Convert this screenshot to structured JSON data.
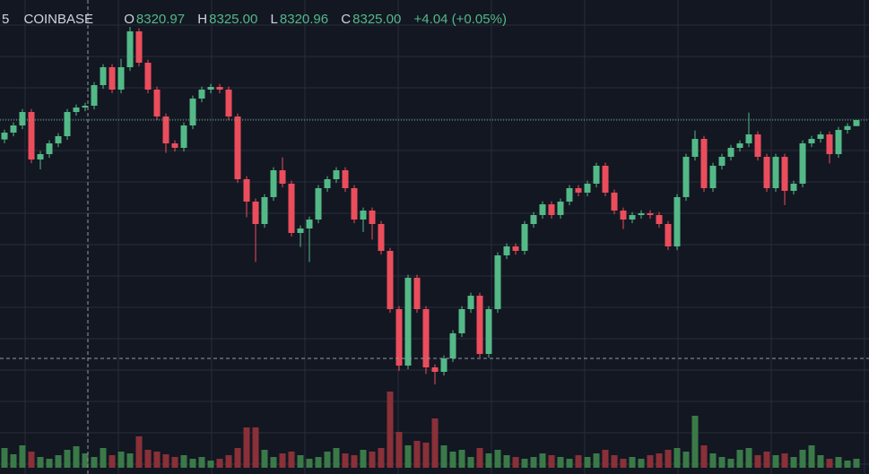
{
  "chart_data": {
    "type": "candlestick",
    "legend": {
      "interval": "5",
      "exchange": "COINBASE",
      "labels": [
        "O",
        "H",
        "L",
        "C"
      ],
      "values": [
        "8320.97",
        "8325.00",
        "8320.96",
        "8325.00"
      ],
      "change": "+4.04 (+0.05%)"
    },
    "up_color": "#53b987",
    "down_color": "#eb4d5c",
    "volume_up_color": "#3a7a48",
    "volume_down_color": "#8a3038",
    "ylim": [
      8147.4,
      8387.4
    ],
    "open": [
      8312.0,
      8316.6,
      8321.4,
      8330.4,
      8298.6,
      8302.2,
      8309.4,
      8314.2,
      8330.4,
      8333.4,
      8334.6,
      8348.4,
      8360.4,
      8345.4,
      8360.4,
      8384.4,
      8363.4,
      8345.4,
      8327.4,
      8309.4,
      8306.4,
      8321.4,
      8339.4,
      8345.4,
      8347.2,
      8345.4,
      8327.4,
      8285.4,
      8270.4,
      8255.4,
      8273.4,
      8291.4,
      8282.4,
      8249.4,
      8252.4,
      8258.4,
      8279.4,
      8285.4,
      8291.4,
      8279.4,
      8258.4,
      8264.4,
      8255.4,
      8237.4,
      8198.4,
      8160.6,
      8219.4,
      8198.4,
      8159.4,
      8156.4,
      8165.4,
      8182.2,
      8198.4,
      8207.4,
      8168.4,
      8198.4,
      8234.4,
      8240.4,
      8237.4,
      8255.4,
      8261.4,
      8268.6,
      8261.4,
      8270.4,
      8279.4,
      8276.4,
      8282.4,
      8294.4,
      8276.4,
      8264.4,
      8258.4,
      8261.4,
      8262.6,
      8261.4,
      8255.4,
      8240.4,
      8273.4,
      8300.4,
      8312.4,
      8279.4,
      8294.4,
      8300.4,
      8306.4,
      8309.4,
      8315.4,
      8300.4,
      8279.4,
      8300.4,
      8277.6,
      8282.4,
      8309.4,
      8312.4,
      8315.4,
      8302.2,
      8318.4,
      8320.97
    ],
    "high": [
      8318.6,
      8323.4,
      8332.4,
      8332.4,
      8304.2,
      8311.4,
      8316.2,
      8332.4,
      8335.4,
      8336.6,
      8350.4,
      8362.4,
      8362.4,
      8366.0,
      8387.4,
      8386.4,
      8365.4,
      8347.4,
      8329.4,
      8311.4,
      8323.4,
      8341.4,
      8347.4,
      8349.2,
      8349.2,
      8347.4,
      8329.4,
      8287.4,
      8272.4,
      8275.4,
      8293.4,
      8300.0,
      8284.4,
      8254.4,
      8260.4,
      8281.4,
      8287.4,
      8293.4,
      8293.4,
      8281.4,
      8266.4,
      8266.4,
      8257.4,
      8239.4,
      8200.4,
      8221.4,
      8221.4,
      8200.4,
      8161.4,
      8167.4,
      8184.2,
      8200.4,
      8209.4,
      8209.4,
      8200.4,
      8236.4,
      8242.4,
      8242.4,
      8257.4,
      8263.4,
      8270.6,
      8270.6,
      8272.4,
      8281.4,
      8281.4,
      8284.4,
      8296.4,
      8296.4,
      8278.4,
      8266.4,
      8263.4,
      8264.6,
      8264.6,
      8263.4,
      8257.4,
      8275.4,
      8302.4,
      8318.0,
      8314.4,
      8296.4,
      8302.4,
      8308.4,
      8311.4,
      8330.0,
      8317.4,
      8302.4,
      8302.4,
      8302.4,
      8284.4,
      8311.4,
      8314.4,
      8317.4,
      8317.4,
      8320.4,
      8322.9,
      8325.0
    ],
    "low": [
      8309.5,
      8314.1,
      8318.9,
      8296.1,
      8292.0,
      8299.7,
      8306.9,
      8311.7,
      8327.9,
      8330.9,
      8332.1,
      8345.9,
      8342.9,
      8342.9,
      8357.9,
      8360.9,
      8342.9,
      8324.9,
      8303.0,
      8303.9,
      8303.9,
      8318.9,
      8336.9,
      8342.9,
      8342.9,
      8324.9,
      8282.9,
      8260.0,
      8230.0,
      8252.9,
      8270.9,
      8279.9,
      8246.9,
      8240.0,
      8230.0,
      8255.9,
      8276.9,
      8282.9,
      8276.9,
      8255.9,
      8250.0,
      8245.0,
      8234.9,
      8195.9,
      8157.0,
      8158.1,
      8195.9,
      8155.0,
      8148.0,
      8153.9,
      8162.9,
      8179.7,
      8195.9,
      8165.9,
      8165.9,
      8195.9,
      8231.9,
      8234.9,
      8234.9,
      8252.9,
      8258.9,
      8258.9,
      8258.9,
      8267.9,
      8273.9,
      8273.9,
      8279.9,
      8273.9,
      8261.9,
      8252.0,
      8255.9,
      8258.9,
      8258.9,
      8252.9,
      8237.9,
      8237.9,
      8270.9,
      8297.9,
      8276.9,
      8276.9,
      8291.9,
      8297.9,
      8303.9,
      8306.9,
      8297.9,
      8276.9,
      8276.9,
      8268.0,
      8275.1,
      8279.9,
      8306.9,
      8309.9,
      8296.0,
      8299.7,
      8315.9,
      8320.96
    ],
    "close": [
      8316.6,
      8321.4,
      8330.4,
      8298.6,
      8302.2,
      8309.4,
      8314.2,
      8330.4,
      8333.4,
      8334.6,
      8348.4,
      8360.4,
      8345.4,
      8360.4,
      8384.4,
      8363.4,
      8345.4,
      8327.4,
      8309.4,
      8306.4,
      8321.4,
      8339.4,
      8345.4,
      8347.2,
      8345.4,
      8327.4,
      8285.4,
      8270.4,
      8255.4,
      8273.4,
      8291.4,
      8282.4,
      8249.4,
      8252.4,
      8258.4,
      8279.4,
      8285.4,
      8291.4,
      8279.4,
      8258.4,
      8264.4,
      8255.4,
      8237.4,
      8198.4,
      8160.6,
      8219.4,
      8198.4,
      8159.4,
      8156.4,
      8165.4,
      8182.2,
      8198.4,
      8207.4,
      8168.4,
      8198.4,
      8234.4,
      8240.4,
      8237.4,
      8255.4,
      8261.4,
      8268.6,
      8261.4,
      8270.4,
      8279.4,
      8276.4,
      8282.4,
      8294.4,
      8276.4,
      8264.4,
      8258.4,
      8261.4,
      8262.6,
      8261.4,
      8255.4,
      8240.4,
      8273.4,
      8300.4,
      8312.4,
      8279.4,
      8294.4,
      8300.4,
      8306.4,
      8309.4,
      8315.4,
      8300.4,
      8279.4,
      8300.4,
      8277.6,
      8282.4,
      8309.4,
      8312.4,
      8315.4,
      8302.2,
      8318.4,
      8320.97,
      8325.0
    ],
    "volume": {
      "ylim": [
        0,
        100
      ],
      "values": [
        22,
        15,
        25,
        18,
        12,
        10,
        14,
        20,
        24,
        16,
        12,
        22,
        14,
        18,
        16,
        35,
        20,
        18,
        15,
        12,
        14,
        10,
        12,
        8,
        10,
        14,
        22,
        45,
        45,
        20,
        12,
        16,
        18,
        14,
        10,
        12,
        18,
        22,
        16,
        14,
        20,
        18,
        22,
        85,
        40,
        25,
        30,
        28,
        55,
        25,
        18,
        20,
        12,
        22,
        16,
        20,
        14,
        12,
        10,
        12,
        16,
        14,
        12,
        10,
        14,
        12,
        16,
        20,
        14,
        10,
        12,
        10,
        14,
        16,
        20,
        22,
        18,
        58,
        25,
        16,
        12,
        10,
        20,
        22,
        14,
        18,
        14,
        16,
        12,
        20,
        25,
        14,
        10,
        12,
        8,
        10
      ]
    }
  }
}
